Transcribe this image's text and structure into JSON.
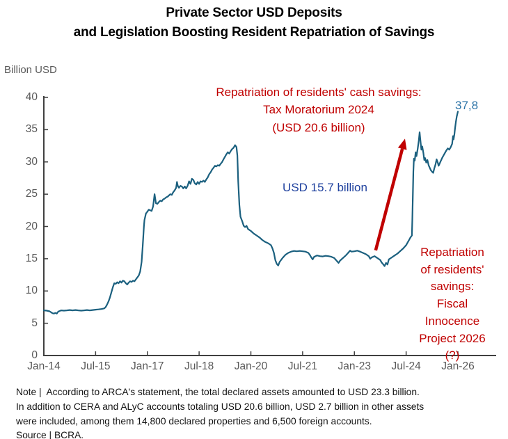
{
  "title": {
    "line1": "Private Sector USD Deposits",
    "line2": "and Legislation Boosting Resident Repatriation of Savings"
  },
  "colors": {
    "accent_red": "#C00000",
    "accent_navy": "#1F419E",
    "accent_steel_blue": "#2E75A8",
    "line_color": "#1B607F",
    "axis_color": "#404040",
    "tick_text": "#595959"
  },
  "chart_data": {
    "type": "line",
    "title": "Private Sector USD Deposits and Legislation Boosting Resident Repatriation of Savings",
    "xlabel": "",
    "ylabel": "Billion USD",
    "ylim": [
      0,
      40
    ],
    "grid": false,
    "legend": "none",
    "y_ticks": [
      0,
      5,
      10,
      15,
      20,
      25,
      30,
      35,
      40
    ],
    "x_unit": "months since Jan-2014",
    "x_ticks": [
      {
        "m": 0,
        "label": "Jan-14"
      },
      {
        "m": 18,
        "label": "Jul-15"
      },
      {
        "m": 36,
        "label": "Jan-17"
      },
      {
        "m": 54,
        "label": "Jul-18"
      },
      {
        "m": 72,
        "label": "Jan-20"
      },
      {
        "m": 90,
        "label": "Jul-21"
      },
      {
        "m": 108,
        "label": "Jan-23"
      },
      {
        "m": 126,
        "label": "Jul-24"
      },
      {
        "m": 144,
        "label": "Jan-26"
      }
    ],
    "series": [
      {
        "name": "Private sector USD deposits (billion USD)",
        "color": "#1B607F",
        "points": [
          [
            0,
            7.0
          ],
          [
            1,
            6.95
          ],
          [
            2,
            6.85
          ],
          [
            3,
            6.55
          ],
          [
            3.5,
            6.5
          ],
          [
            4,
            6.6
          ],
          [
            4.5,
            6.5
          ],
          [
            5,
            6.8
          ],
          [
            6,
            7.0
          ],
          [
            7,
            6.95
          ],
          [
            8,
            7.0
          ],
          [
            9,
            7.05
          ],
          [
            10,
            7.0
          ],
          [
            11,
            7.05
          ],
          [
            12,
            7.0
          ],
          [
            13,
            6.95
          ],
          [
            14,
            7.0
          ],
          [
            15,
            7.05
          ],
          [
            16,
            7.0
          ],
          [
            17,
            7.05
          ],
          [
            18,
            7.1
          ],
          [
            19,
            7.15
          ],
          [
            20,
            7.2
          ],
          [
            21,
            7.3
          ],
          [
            21.5,
            7.5
          ],
          [
            22,
            7.9
          ],
          [
            22.5,
            8.4
          ],
          [
            23,
            9.0
          ],
          [
            23.5,
            9.8
          ],
          [
            24,
            10.6
          ],
          [
            24.5,
            11.2
          ],
          [
            25,
            11.1
          ],
          [
            25.5,
            11.35
          ],
          [
            26,
            11.2
          ],
          [
            26.5,
            11.5
          ],
          [
            27,
            11.3
          ],
          [
            27.5,
            11.6
          ],
          [
            28,
            11.5
          ],
          [
            28.5,
            11.2
          ],
          [
            29,
            11.0
          ],
          [
            29.5,
            11.3
          ],
          [
            30,
            11.5
          ],
          [
            30.5,
            11.4
          ],
          [
            31,
            11.6
          ],
          [
            31.5,
            11.5
          ],
          [
            32,
            11.8
          ],
          [
            32.5,
            12.1
          ],
          [
            33,
            12.4
          ],
          [
            33.5,
            13.0
          ],
          [
            34,
            14.5
          ],
          [
            34.4,
            17.0
          ],
          [
            34.8,
            20.0
          ],
          [
            35,
            21.0
          ],
          [
            35.5,
            22.0
          ],
          [
            36,
            22.3
          ],
          [
            36.5,
            22.6
          ],
          [
            37,
            22.5
          ],
          [
            37.5,
            22.4
          ],
          [
            38,
            23.1
          ],
          [
            38.5,
            25.0
          ],
          [
            39,
            23.6
          ],
          [
            39.5,
            23.5
          ],
          [
            40,
            23.8
          ],
          [
            40.5,
            24.0
          ],
          [
            41,
            23.9
          ],
          [
            41.5,
            24.2
          ],
          [
            42,
            24.3
          ],
          [
            42.5,
            24.5
          ],
          [
            43,
            24.6
          ],
          [
            43.5,
            24.8
          ],
          [
            44,
            25.0
          ],
          [
            44.5,
            24.9
          ],
          [
            45,
            25.3
          ],
          [
            45.5,
            25.6
          ],
          [
            46,
            26.0
          ],
          [
            46.3,
            26.9
          ],
          [
            46.6,
            26.3
          ],
          [
            47,
            26.0
          ],
          [
            47.5,
            26.3
          ],
          [
            48,
            26.2
          ],
          [
            48.5,
            25.9
          ],
          [
            49,
            26.2
          ],
          [
            49.5,
            25.9
          ],
          [
            50,
            26.3
          ],
          [
            50.5,
            27.0
          ],
          [
            51,
            26.6
          ],
          [
            51.5,
            27.4
          ],
          [
            52,
            27.2
          ],
          [
            52.5,
            26.7
          ],
          [
            53,
            26.5
          ],
          [
            53.5,
            26.9
          ],
          [
            54,
            26.6
          ],
          [
            54.5,
            27.0
          ],
          [
            55,
            26.9
          ],
          [
            55.5,
            27.1
          ],
          [
            56,
            26.9
          ],
          [
            56.5,
            27.3
          ],
          [
            57,
            27.6
          ],
          [
            57.5,
            28.1
          ],
          [
            58,
            28.4
          ],
          [
            58.5,
            28.8
          ],
          [
            59,
            29.1
          ],
          [
            59.5,
            29.4
          ],
          [
            60,
            29.3
          ],
          [
            60.5,
            29.5
          ],
          [
            61,
            29.4
          ],
          [
            61.5,
            29.7
          ],
          [
            62,
            30.0
          ],
          [
            62.5,
            30.4
          ],
          [
            63,
            30.8
          ],
          [
            63.5,
            31.2
          ],
          [
            64,
            31.5
          ],
          [
            64.5,
            31.3
          ],
          [
            65,
            31.7
          ],
          [
            65.5,
            32.0
          ],
          [
            66,
            32.2
          ],
          [
            66.5,
            32.6
          ],
          [
            67,
            32.3
          ],
          [
            67.3,
            31.0
          ],
          [
            67.6,
            27.0
          ],
          [
            68,
            23.3
          ],
          [
            68.4,
            21.5
          ],
          [
            69,
            20.8
          ],
          [
            69.5,
            20.1
          ],
          [
            70,
            19.9
          ],
          [
            70.5,
            20.1
          ],
          [
            71,
            19.6
          ],
          [
            72,
            19.3
          ],
          [
            73,
            18.9
          ],
          [
            74,
            18.6
          ],
          [
            75,
            18.3
          ],
          [
            76,
            17.9
          ],
          [
            77,
            17.6
          ],
          [
            78,
            17.4
          ],
          [
            79,
            17.1
          ],
          [
            79.5,
            16.6
          ],
          [
            80,
            15.9
          ],
          [
            80.5,
            14.8
          ],
          [
            81,
            14.2
          ],
          [
            81.5,
            13.95
          ],
          [
            82,
            14.5
          ],
          [
            83,
            15.1
          ],
          [
            84,
            15.6
          ],
          [
            85,
            15.9
          ],
          [
            86,
            16.1
          ],
          [
            87,
            16.2
          ],
          [
            88,
            16.15
          ],
          [
            89,
            16.2
          ],
          [
            90,
            16.15
          ],
          [
            91,
            16.1
          ],
          [
            92,
            15.9
          ],
          [
            92.5,
            15.6
          ],
          [
            93,
            15.2
          ],
          [
            93.5,
            14.9
          ],
          [
            94,
            15.3
          ],
          [
            95,
            15.5
          ],
          [
            96,
            15.4
          ],
          [
            97,
            15.35
          ],
          [
            98,
            15.45
          ],
          [
            99,
            15.4
          ],
          [
            100,
            15.3
          ],
          [
            101,
            15.1
          ],
          [
            102,
            14.6
          ],
          [
            102.5,
            14.35
          ],
          [
            103,
            14.7
          ],
          [
            104,
            15.1
          ],
          [
            105,
            15.5
          ],
          [
            106,
            16.0
          ],
          [
            106.5,
            16.25
          ],
          [
            107,
            16.1
          ],
          [
            108,
            16.15
          ],
          [
            109,
            16.25
          ],
          [
            110,
            16.1
          ],
          [
            111,
            15.9
          ],
          [
            112,
            15.7
          ],
          [
            113,
            15.4
          ],
          [
            113.5,
            15.0
          ],
          [
            114,
            15.2
          ],
          [
            115,
            15.4
          ],
          [
            116,
            15.1
          ],
          [
            117,
            14.8
          ],
          [
            117.5,
            14.4
          ],
          [
            118,
            14.15
          ],
          [
            118.5,
            13.85
          ],
          [
            119,
            14.35
          ],
          [
            119.5,
            14.1
          ],
          [
            120,
            14.9
          ],
          [
            121,
            15.2
          ],
          [
            122,
            15.5
          ],
          [
            123,
            15.8
          ],
          [
            124,
            16.2
          ],
          [
            125,
            16.6
          ],
          [
            126,
            17.1
          ],
          [
            126.5,
            17.5
          ],
          [
            127,
            17.9
          ],
          [
            127.5,
            18.3
          ],
          [
            128,
            18.6
          ],
          [
            128.15,
            21.0
          ],
          [
            128.3,
            24.0
          ],
          [
            128.5,
            28.5
          ],
          [
            128.7,
            30.5
          ],
          [
            129,
            30.2
          ],
          [
            129.3,
            31.5
          ],
          [
            129.6,
            30.9
          ],
          [
            130,
            32.0
          ],
          [
            130.4,
            33.3
          ],
          [
            130.7,
            34.6
          ],
          [
            131,
            33.2
          ],
          [
            131.3,
            31.9
          ],
          [
            131.6,
            32.4
          ],
          [
            132,
            31.4
          ],
          [
            132.3,
            30.3
          ],
          [
            132.6,
            30.6
          ],
          [
            133,
            29.9
          ],
          [
            133.4,
            30.3
          ],
          [
            133.8,
            29.5
          ],
          [
            134.2,
            29.1
          ],
          [
            134.6,
            28.7
          ],
          [
            135,
            28.5
          ],
          [
            135.4,
            28.3
          ],
          [
            135.8,
            29.0
          ],
          [
            136.2,
            29.6
          ],
          [
            136.6,
            30.4
          ],
          [
            137,
            29.9
          ],
          [
            137.3,
            29.4
          ],
          [
            137.6,
            29.7
          ],
          [
            138,
            30.1
          ],
          [
            138.5,
            30.6
          ],
          [
            139,
            31.0
          ],
          [
            139.5,
            31.4
          ],
          [
            140,
            31.8
          ],
          [
            140.5,
            32.1
          ],
          [
            141,
            31.9
          ],
          [
            141.5,
            32.3
          ],
          [
            142,
            32.8
          ],
          [
            142.3,
            34.0
          ],
          [
            142.5,
            33.5
          ],
          [
            142.8,
            34.3
          ],
          [
            143,
            35.2
          ],
          [
            143.3,
            36.2
          ],
          [
            143.6,
            37.0
          ],
          [
            144,
            37.8
          ]
        ]
      }
    ],
    "annotations": {
      "moratorium": {
        "lines": [
          "Repatriation of residents' cash savings:",
          "Tax Moratorium 2024",
          "(USD 20.6 billion)"
        ],
        "color": "#C00000"
      },
      "mid_label": {
        "text": "USD 15.7 billion",
        "color": "#1F419E"
      },
      "endpoint": {
        "text": "37,8",
        "value": 37.8,
        "color": "#2E75A8"
      },
      "fiscal": {
        "lines": [
          "Repatriation",
          "of residents'",
          "savings:",
          "Fiscal",
          "Innocence",
          "Project 2026",
          "(?)"
        ],
        "color": "#C00000"
      },
      "arrow": {
        "from": [
          115.4,
          16.3
        ],
        "to": [
          125.6,
          33.6
        ],
        "color": "#C00000"
      }
    }
  },
  "note": {
    "lines": [
      "Note |  According to ARCA's statement, the total declared assets amounted to USD 23.3 billion.",
      "In addition to CERA and ALyC accounts totaling USD 20.6 billion, USD 2.7 billion in other assets",
      "were included, among them 14,800 declared properties and 6,500 foreign accounts.",
      "Source | BCRA."
    ]
  }
}
